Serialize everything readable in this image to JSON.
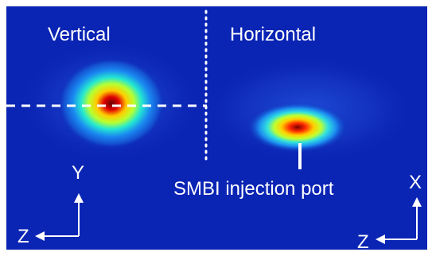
{
  "panels": {
    "left_label": "Vertical",
    "right_label": "Horizontal"
  },
  "annotation": {
    "port_label": "SMBI injection port"
  },
  "axes_left": {
    "vertical_axis": "Y",
    "horizontal_axis": "Z"
  },
  "axes_right": {
    "vertical_axis": "X",
    "horizontal_axis": "Z"
  },
  "colors": {
    "background": "#0a24b4",
    "annotation": "#ffffff",
    "hot_core": "#cc0000",
    "halo": "#ffdd00"
  }
}
